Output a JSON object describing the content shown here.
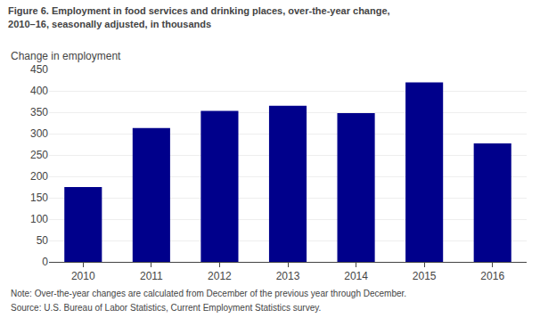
{
  "chart_data": {
    "type": "bar",
    "title": "Figure 6. Employment in food services and drinking places, over-the-year change,\n2010–16, seasonally adjusted, in thousands",
    "ylabel": "Change in employment",
    "categories": [
      "2010",
      "2011",
      "2012",
      "2013",
      "2014",
      "2015",
      "2016"
    ],
    "values": [
      175,
      313,
      353,
      365,
      348,
      420,
      277
    ],
    "color": "#00008B",
    "ylim": [
      0,
      450
    ],
    "yticks": [
      0,
      50,
      100,
      150,
      200,
      250,
      300,
      350,
      400,
      450
    ],
    "grid": true,
    "annotations": [
      "Note: Over-the-year changes are calculated from December of the previous year through December.",
      "Source: U.S. Bureau of Labor Statistics, Current Employment Statistics survey."
    ]
  }
}
